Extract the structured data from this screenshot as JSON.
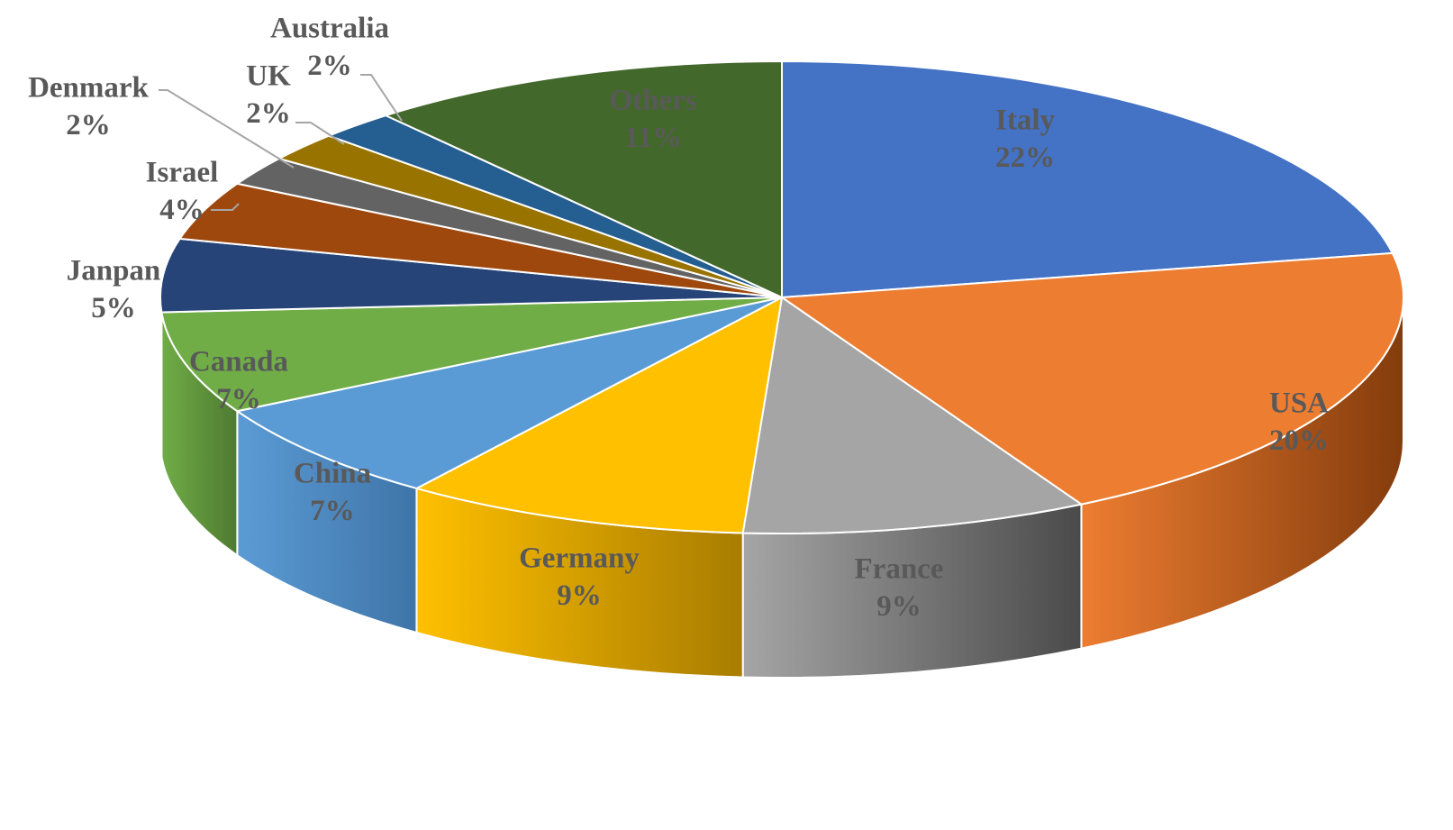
{
  "chart_data": {
    "type": "pie",
    "style": "3d-exploded-none",
    "title": "",
    "slices": [
      {
        "label": "Italy",
        "value": 22,
        "display": "22%",
        "color": "#4472C4",
        "side_color": "#2F5597"
      },
      {
        "label": "USA",
        "value": 20,
        "display": "20%",
        "color": "#ED7D31",
        "side_color": "#843C0C"
      },
      {
        "label": "France",
        "value": 9,
        "display": "9%",
        "color": "#A5A5A5",
        "side_color": "#4A4A4A"
      },
      {
        "label": "Germany",
        "value": 9,
        "display": "9%",
        "color": "#FFC000",
        "side_color": "#A87C00"
      },
      {
        "label": "China",
        "value": 7,
        "display": "7%",
        "color": "#5B9BD5",
        "side_color": "#3F75A8"
      },
      {
        "label": "Canada",
        "value": 7,
        "display": "7%",
        "color": "#70AD47",
        "side_color": "#4E7A31"
      },
      {
        "label": "Janpan",
        "value": 5,
        "display": "5%",
        "color": "#264478",
        "side_color": "#172A4A"
      },
      {
        "label": "Israel",
        "value": 4,
        "display": "4%",
        "color": "#9E480E",
        "side_color": "#622C08"
      },
      {
        "label": "Denmark",
        "value": 2,
        "display": "2%",
        "color": "#636363",
        "side_color": "#3A3A3A"
      },
      {
        "label": "UK",
        "value": 2,
        "display": "2%",
        "color": "#997300",
        "side_color": "#5E4600"
      },
      {
        "label": "Australia",
        "value": 2,
        "display": "2%",
        "color": "#255E91",
        "side_color": "#173A5A"
      },
      {
        "label": "Others",
        "value": 11,
        "display": "11%",
        "color": "#43682B",
        "side_color": "#2A421B"
      }
    ],
    "legend": "none",
    "data_labels": "category-and-percent"
  }
}
